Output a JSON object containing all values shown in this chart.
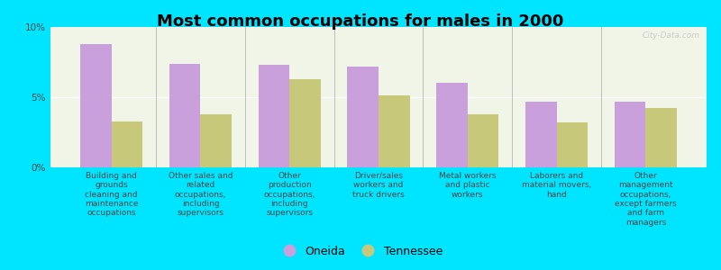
{
  "title": "Most common occupations for males in 2000",
  "categories": [
    "Building and\ngrounds\ncleaning and\nmaintenance\noccupations",
    "Other sales and\nrelated\noccupations,\nincluding\nsupervisors",
    "Other\nproduction\noccupations,\nincluding\nsupervisors",
    "Driver/sales\nworkers and\ntruck drivers",
    "Metal workers\nand plastic\nworkers",
    "Laborers and\nmaterial movers,\nhand",
    "Other\nmanagement\noccupations,\nexcept farmers\nand farm\nmanagers"
  ],
  "oneida_values": [
    8.8,
    7.4,
    7.3,
    7.2,
    6.0,
    4.7,
    4.7
  ],
  "tennessee_values": [
    3.3,
    3.8,
    6.3,
    5.1,
    3.8,
    3.2,
    4.2
  ],
  "oneida_color": "#c9a0dc",
  "tennessee_color": "#c8c87a",
  "background_outer": "#00e5ff",
  "background_inner": "#f0f5e8",
  "ylim": [
    0,
    10
  ],
  "yticks": [
    0,
    5,
    10
  ],
  "ytick_labels": [
    "0%",
    "5%",
    "10%"
  ],
  "bar_width": 0.35,
  "legend_oneida": "Oneida",
  "legend_tennessee": "Tennessee",
  "title_fontsize": 13,
  "label_fontsize": 6.5,
  "watermark": "City-Data.com"
}
